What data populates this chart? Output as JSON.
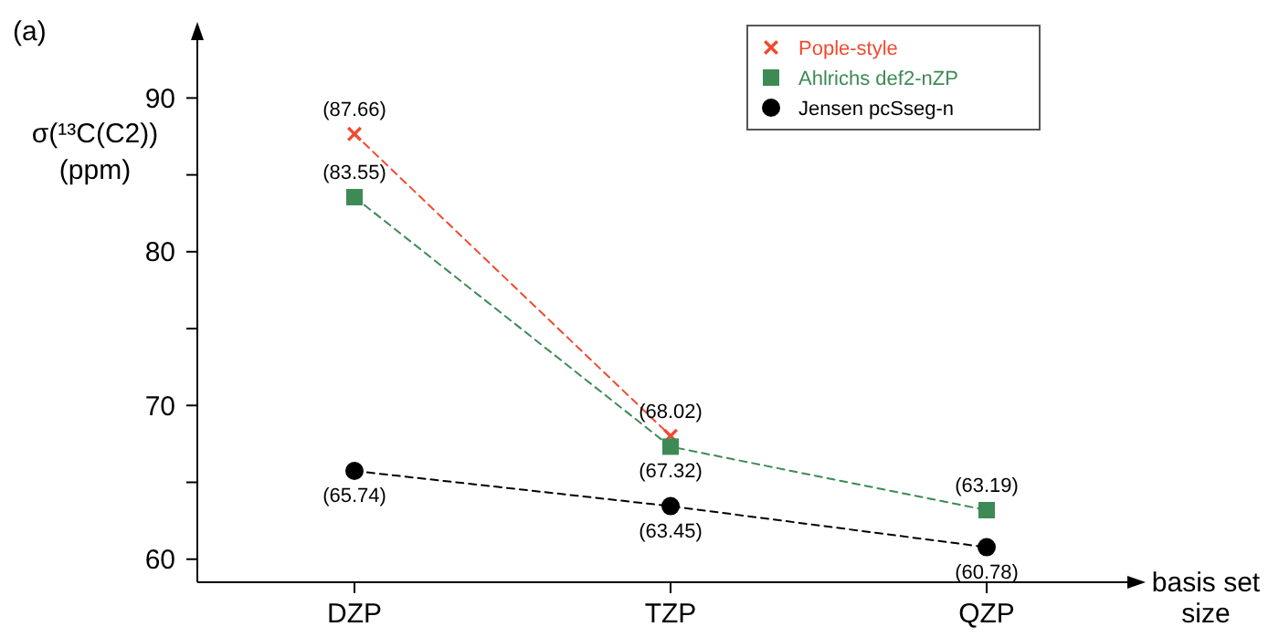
{
  "chart_data": {
    "type": "line",
    "title": "(a)",
    "xlabel": "basis set size",
    "ylabel": "σ(¹³C(C2))\n(ppm)",
    "categories": [
      "DZP",
      "TZP",
      "QZP"
    ],
    "series": [
      {
        "name": "Pople-style",
        "color": "#f04a2f",
        "marker": "cross",
        "values": [
          87.66,
          68.02,
          null
        ],
        "value_labels": [
          "(87.66)",
          "(68.02)",
          null
        ]
      },
      {
        "name": "Ahlrichs def2-nZP",
        "color": "#3d8a55",
        "marker": "square",
        "values": [
          83.55,
          67.32,
          63.19
        ],
        "value_labels": [
          "(83.55)",
          "(67.32)",
          "(63.19)"
        ]
      },
      {
        "name": "Jensen pcSseg-n",
        "color": "#000000",
        "marker": "circle",
        "values": [
          65.74,
          63.45,
          60.78
        ],
        "value_labels": [
          "(65.74)",
          "(63.45)",
          "(60.78)"
        ]
      }
    ],
    "ylim": [
      58.5,
      94
    ],
    "yticks": [
      60,
      {
        "value": 65,
        "label": null
      },
      70,
      {
        "value": 75,
        "label": null
      },
      80,
      {
        "value": 85,
        "label": null
      },
      90
    ],
    "line_style": "dashed",
    "grid": false,
    "legend": "top right"
  }
}
